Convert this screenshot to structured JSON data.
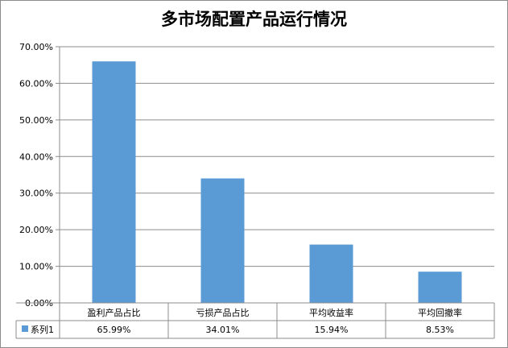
{
  "chart_data": {
    "type": "bar",
    "title": "多市场配置产品运行情况",
    "categories": [
      "盈利产品占比",
      "亏损产品占比",
      "平均收益率",
      "平均回撤率"
    ],
    "series": [
      {
        "name": "系列1",
        "values": [
          65.99,
          34.01,
          15.94,
          8.53
        ],
        "labels": [
          "65.99%",
          "34.01%",
          "15.94%",
          "8.53%"
        ],
        "color": "#5b9bd5"
      }
    ],
    "ylim": [
      0,
      70
    ],
    "yticks": [
      "0.00%",
      "10.00%",
      "20.00%",
      "30.00%",
      "40.00%",
      "50.00%",
      "60.00%",
      "70.00%"
    ],
    "grid": true,
    "legend": "data-table",
    "xlabel": "",
    "ylabel": ""
  }
}
